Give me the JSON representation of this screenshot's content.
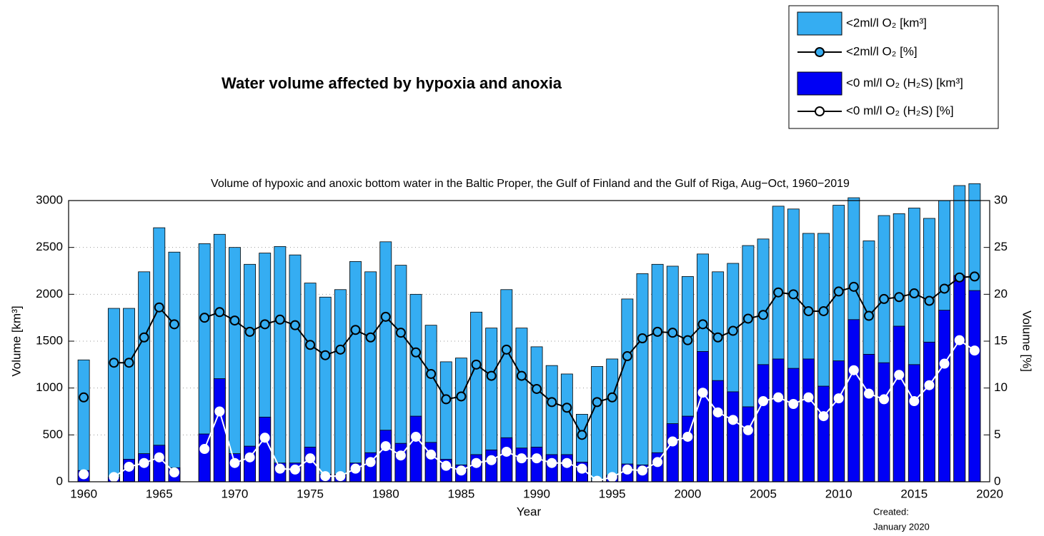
{
  "chart_data": {
    "type": "bar",
    "title": "Water volume affected by hypoxia and anoxia",
    "subtitle": "Volume of hypoxic and anoxic bottom water in the Baltic Proper, the Gulf of Finland and the Gulf of Riga, Aug−Oct, 1960−2019",
    "x_label": "Year",
    "y_label": "Volume [km³]",
    "y2_label": "Volume [%]",
    "annotation": [
      "Created:",
      "January 2020"
    ],
    "x": [
      1960,
      1961,
      1962,
      1963,
      1964,
      1965,
      1966,
      1967,
      1968,
      1969,
      1970,
      1971,
      1972,
      1973,
      1974,
      1975,
      1976,
      1977,
      1978,
      1979,
      1980,
      1981,
      1982,
      1983,
      1984,
      1985,
      1986,
      1987,
      1988,
      1989,
      1990,
      1991,
      1992,
      1993,
      1994,
      1995,
      1996,
      1997,
      1998,
      1999,
      2000,
      2001,
      2002,
      2003,
      2004,
      2005,
      2006,
      2007,
      2008,
      2009,
      2010,
      2011,
      2012,
      2013,
      2014,
      2015,
      2016,
      2017,
      2018,
      2019
    ],
    "xlim": [
      1959,
      2020
    ],
    "xticks": [
      1960,
      1965,
      1970,
      1975,
      1980,
      1985,
      1990,
      1995,
      2000,
      2005,
      2010,
      2015,
      2020
    ],
    "ylim": [
      0,
      3000
    ],
    "yticks": [
      0,
      500,
      1000,
      1500,
      2000,
      2500,
      3000
    ],
    "y2lim": [
      0,
      30
    ],
    "y2ticks": [
      0,
      5,
      10,
      15,
      20,
      25,
      30
    ],
    "grid": true,
    "series": [
      {
        "name": "<2ml/l O₂ [km³]",
        "type": "bar",
        "color": "#35adf2",
        "values": [
          1300,
          null,
          1850,
          1850,
          2240,
          2710,
          2450,
          null,
          2540,
          2640,
          2500,
          2320,
          2440,
          2510,
          2420,
          2120,
          1970,
          2050,
          2350,
          2240,
          2560,
          2310,
          2000,
          1670,
          1280,
          1320,
          1810,
          1640,
          2050,
          1640,
          1440,
          1240,
          1150,
          720,
          1230,
          1310,
          1950,
          2220,
          2320,
          2300,
          2190,
          2430,
          2240,
          2330,
          2520,
          2590,
          2940,
          2910,
          2650,
          2650,
          2950,
          3030,
          2570,
          2840,
          2860,
          2920,
          2810,
          3000,
          3160,
          3180
        ]
      },
      {
        "name": "<2ml/l O₂ [%]",
        "type": "line",
        "axis": "y2",
        "color": "#000000",
        "marker_color": "#35adf2",
        "values": [
          9.0,
          null,
          12.7,
          12.7,
          15.4,
          18.6,
          16.8,
          null,
          17.5,
          18.1,
          17.2,
          16.0,
          16.8,
          17.3,
          16.7,
          14.6,
          13.5,
          14.1,
          16.2,
          15.4,
          17.6,
          15.9,
          13.8,
          11.5,
          8.8,
          9.1,
          12.5,
          11.3,
          14.1,
          11.3,
          9.9,
          8.5,
          7.9,
          5.0,
          8.5,
          9.0,
          13.4,
          15.3,
          16.0,
          15.9,
          15.1,
          16.8,
          15.4,
          16.1,
          17.4,
          17.8,
          20.2,
          20.0,
          18.2,
          18.2,
          20.3,
          20.8,
          17.7,
          19.5,
          19.7,
          20.1,
          19.3,
          20.6,
          21.8,
          21.9
        ]
      },
      {
        "name": "<0 ml/l O₂ (H₂S) [km³]",
        "type": "bar",
        "color": "#0000f5",
        "values": [
          120,
          null,
          50,
          240,
          300,
          390,
          150,
          null,
          510,
          1100,
          300,
          380,
          690,
          200,
          200,
          370,
          80,
          80,
          200,
          310,
          550,
          410,
          700,
          420,
          240,
          180,
          290,
          340,
          470,
          360,
          370,
          290,
          290,
          210,
          10,
          70,
          190,
          180,
          310,
          620,
          700,
          1390,
          1080,
          960,
          800,
          1250,
          1310,
          1210,
          1310,
          1020,
          1290,
          1730,
          1360,
          1270,
          1660,
          1250,
          1490,
          1830,
          2200,
          2040
        ]
      },
      {
        "name": "<0 ml/l O₂ (H₂S) [%]",
        "type": "line",
        "axis": "y2",
        "color": "#ffffff",
        "marker_color": "#ffffff",
        "values": [
          0.8,
          null,
          0.5,
          1.6,
          2.0,
          2.6,
          1.0,
          null,
          3.5,
          7.5,
          2.0,
          2.6,
          4.7,
          1.4,
          1.3,
          2.5,
          0.6,
          0.6,
          1.4,
          2.1,
          3.8,
          2.8,
          4.8,
          2.9,
          1.7,
          1.2,
          2.0,
          2.3,
          3.2,
          2.5,
          2.5,
          2.0,
          2.0,
          1.4,
          0.1,
          0.5,
          1.3,
          1.2,
          2.1,
          4.3,
          4.8,
          9.5,
          7.4,
          6.6,
          5.5,
          8.6,
          9.0,
          8.3,
          9.0,
          7.0,
          8.9,
          11.9,
          9.4,
          8.8,
          11.4,
          8.6,
          10.3,
          12.6,
          15.1,
          14.0
        ]
      }
    ]
  }
}
